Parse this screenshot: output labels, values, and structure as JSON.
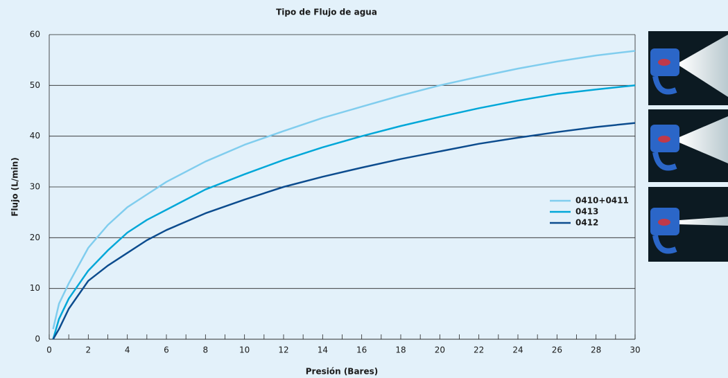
{
  "chart_data": {
    "type": "line",
    "title": "Tipo de Flujo de agua",
    "x_label": "Presión (Bares)",
    "y_label": "Flujo (L/min)",
    "x": [
      0.2,
      0.5,
      1,
      2,
      3,
      4,
      5,
      6,
      8,
      10,
      12,
      14,
      16,
      18,
      20,
      22,
      24,
      26,
      28,
      30
    ],
    "series": [
      {
        "name": "0410+0411",
        "color": "#80cdee",
        "values": [
          2,
          7,
          11,
          18,
          22.5,
          26,
          28.5,
          31,
          35,
          38.3,
          41,
          43.6,
          45.8,
          48,
          50,
          51.7,
          53.3,
          54.7,
          55.9,
          56.8
        ]
      },
      {
        "name": "0413",
        "color": "#00a7d8",
        "values": [
          0,
          4,
          8,
          13.5,
          17.5,
          21,
          23.5,
          25.5,
          29.5,
          32.5,
          35.3,
          37.8,
          40,
          42,
          43.8,
          45.5,
          47,
          48.3,
          49.2,
          50
        ]
      },
      {
        "name": "0412",
        "color": "#0c4c8e",
        "values": [
          0,
          2,
          6,
          11.5,
          14.5,
          17,
          19.5,
          21.5,
          24.8,
          27.5,
          30,
          32,
          33.8,
          35.5,
          37,
          38.5,
          39.7,
          40.8,
          41.8,
          42.6
        ]
      }
    ],
    "xlim": [
      0,
      30
    ],
    "ylim": [
      0,
      60
    ],
    "xticks": [
      0,
      2,
      4,
      6,
      8,
      10,
      12,
      14,
      16,
      18,
      20,
      22,
      24,
      26,
      28,
      30
    ],
    "xminorticks": [
      1,
      3,
      5,
      7,
      9,
      11,
      13,
      15,
      17,
      19,
      21,
      23,
      25,
      27,
      29
    ],
    "yticks": [
      0,
      10,
      20,
      30,
      40,
      50,
      60
    ],
    "grid": true,
    "legend": "right"
  }
}
